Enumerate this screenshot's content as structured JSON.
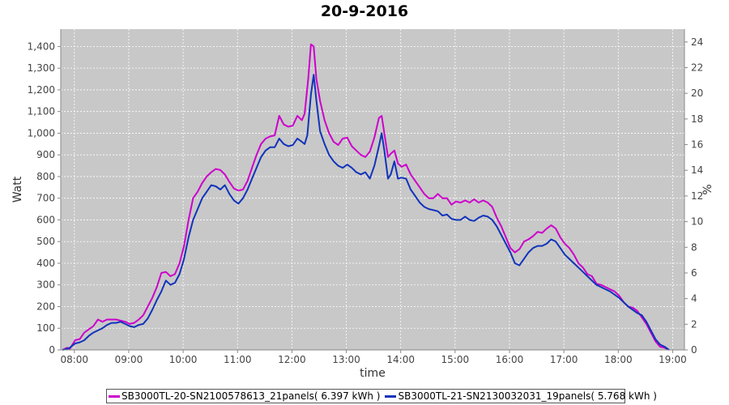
{
  "title": "20-9-2016",
  "chart_data": {
    "type": "line",
    "title": "20-9-2016",
    "xlabel": "time",
    "ylabel": "Watt",
    "y2label": "%",
    "xlim": [
      "07:45",
      "19:13"
    ],
    "ylim": [
      0,
      1480
    ],
    "y2lim": [
      0,
      25
    ],
    "x_ticks": [
      "08:00",
      "09:00",
      "10:00",
      "11:00",
      "12:00",
      "13:00",
      "14:00",
      "15:00",
      "16:00",
      "17:00",
      "18:00",
      "19:00"
    ],
    "y_ticks": [
      0,
      100,
      200,
      300,
      400,
      500,
      600,
      700,
      800,
      900,
      1000,
      1100,
      1200,
      1300,
      1400
    ],
    "y_tick_labels": [
      "0",
      "100",
      "200",
      "300",
      "400",
      "500",
      "600",
      "700",
      "800",
      "900",
      "1,000",
      "1,100",
      "1,200",
      "1,300",
      "1,400"
    ],
    "y2_ticks": [
      "0",
      "2",
      "4",
      "6",
      "8",
      "10",
      "12",
      "14",
      "16",
      "18",
      "20",
      "22",
      "24"
    ],
    "grid": true,
    "background": "#c8c8c8",
    "legend_position": "bottom",
    "series": [
      {
        "name": "SB3000TL-20-SN2100578613_21panels( 6.397 kWh )",
        "color": "#cc00cc",
        "points": [
          [
            "07:47",
            0
          ],
          [
            "07:52",
            10
          ],
          [
            "07:55",
            5
          ],
          [
            "07:58",
            25
          ],
          [
            "08:01",
            45
          ],
          [
            "08:06",
            50
          ],
          [
            "08:11",
            80
          ],
          [
            "08:16",
            95
          ],
          [
            "08:21",
            110
          ],
          [
            "08:26",
            140
          ],
          [
            "08:31",
            130
          ],
          [
            "08:36",
            140
          ],
          [
            "08:46",
            140
          ],
          [
            "08:56",
            130
          ],
          [
            "09:01",
            120
          ],
          [
            "09:06",
            125
          ],
          [
            "09:11",
            140
          ],
          [
            "09:16",
            160
          ],
          [
            "09:21",
            200
          ],
          [
            "09:26",
            240
          ],
          [
            "09:31",
            290
          ],
          [
            "09:36",
            355
          ],
          [
            "09:41",
            360
          ],
          [
            "09:46",
            340
          ],
          [
            "09:51",
            350
          ],
          [
            "09:56",
            400
          ],
          [
            "10:01",
            480
          ],
          [
            "10:06",
            600
          ],
          [
            "10:11",
            700
          ],
          [
            "10:16",
            730
          ],
          [
            "10:21",
            770
          ],
          [
            "10:26",
            800
          ],
          [
            "10:31",
            820
          ],
          [
            "10:36",
            835
          ],
          [
            "10:41",
            830
          ],
          [
            "10:46",
            810
          ],
          [
            "10:51",
            775
          ],
          [
            "10:56",
            745
          ],
          [
            "11:01",
            735
          ],
          [
            "11:06",
            740
          ],
          [
            "11:11",
            780
          ],
          [
            "11:16",
            840
          ],
          [
            "11:21",
            900
          ],
          [
            "11:26",
            950
          ],
          [
            "11:31",
            975
          ],
          [
            "11:36",
            985
          ],
          [
            "11:41",
            990
          ],
          [
            "11:46",
            1080
          ],
          [
            "11:51",
            1040
          ],
          [
            "11:56",
            1030
          ],
          [
            "12:01",
            1035
          ],
          [
            "12:06",
            1080
          ],
          [
            "12:11",
            1060
          ],
          [
            "12:14",
            1090
          ],
          [
            "12:18",
            1250
          ],
          [
            "12:21",
            1410
          ],
          [
            "12:24",
            1400
          ],
          [
            "12:27",
            1250
          ],
          [
            "12:31",
            1150
          ],
          [
            "12:36",
            1060
          ],
          [
            "12:41",
            1000
          ],
          [
            "12:46",
            960
          ],
          [
            "12:51",
            945
          ],
          [
            "12:56",
            975
          ],
          [
            "13:01",
            980
          ],
          [
            "13:06",
            940
          ],
          [
            "13:11",
            920
          ],
          [
            "13:16",
            900
          ],
          [
            "13:21",
            890
          ],
          [
            "13:26",
            915
          ],
          [
            "13:31",
            980
          ],
          [
            "13:36",
            1070
          ],
          [
            "13:39",
            1080
          ],
          [
            "13:43",
            970
          ],
          [
            "13:46",
            890
          ],
          [
            "13:49",
            905
          ],
          [
            "13:53",
            920
          ],
          [
            "13:57",
            860
          ],
          [
            "14:01",
            845
          ],
          [
            "14:06",
            855
          ],
          [
            "14:11",
            810
          ],
          [
            "14:16",
            780
          ],
          [
            "14:21",
            750
          ],
          [
            "14:26",
            720
          ],
          [
            "14:31",
            700
          ],
          [
            "14:36",
            700
          ],
          [
            "14:41",
            720
          ],
          [
            "14:46",
            700
          ],
          [
            "14:51",
            700
          ],
          [
            "14:56",
            670
          ],
          [
            "15:01",
            685
          ],
          [
            "15:06",
            680
          ],
          [
            "15:11",
            690
          ],
          [
            "15:16",
            680
          ],
          [
            "15:21",
            695
          ],
          [
            "15:26",
            680
          ],
          [
            "15:31",
            690
          ],
          [
            "15:36",
            680
          ],
          [
            "15:41",
            660
          ],
          [
            "15:46",
            610
          ],
          [
            "15:51",
            570
          ],
          [
            "15:56",
            520
          ],
          [
            "16:01",
            470
          ],
          [
            "16:06",
            450
          ],
          [
            "16:11",
            465
          ],
          [
            "16:16",
            500
          ],
          [
            "16:21",
            510
          ],
          [
            "16:26",
            525
          ],
          [
            "16:31",
            545
          ],
          [
            "16:36",
            540
          ],
          [
            "16:41",
            560
          ],
          [
            "16:46",
            575
          ],
          [
            "16:51",
            560
          ],
          [
            "16:56",
            520
          ],
          [
            "17:01",
            490
          ],
          [
            "17:06",
            470
          ],
          [
            "17:11",
            440
          ],
          [
            "17:16",
            400
          ],
          [
            "17:21",
            380
          ],
          [
            "17:26",
            350
          ],
          [
            "17:31",
            340
          ],
          [
            "17:36",
            305
          ],
          [
            "17:41",
            300
          ],
          [
            "17:46",
            290
          ],
          [
            "17:51",
            280
          ],
          [
            "17:56",
            270
          ],
          [
            "18:01",
            250
          ],
          [
            "18:06",
            220
          ],
          [
            "18:11",
            200
          ],
          [
            "18:16",
            195
          ],
          [
            "18:21",
            180
          ],
          [
            "18:26",
            150
          ],
          [
            "18:31",
            120
          ],
          [
            "18:36",
            80
          ],
          [
            "18:41",
            40
          ],
          [
            "18:46",
            15
          ],
          [
            "18:51",
            10
          ],
          [
            "18:56",
            0
          ]
        ]
      },
      {
        "name": "SB3000TL-21-SN2130032031_19panels( 5.768 kWh )",
        "color": "#1133bb",
        "points": [
          [
            "07:47",
            0
          ],
          [
            "07:52",
            5
          ],
          [
            "07:55",
            10
          ],
          [
            "07:58",
            20
          ],
          [
            "08:01",
            30
          ],
          [
            "08:06",
            35
          ],
          [
            "08:11",
            45
          ],
          [
            "08:16",
            65
          ],
          [
            "08:21",
            80
          ],
          [
            "08:26",
            90
          ],
          [
            "08:31",
            100
          ],
          [
            "08:36",
            115
          ],
          [
            "08:41",
            125
          ],
          [
            "08:46",
            125
          ],
          [
            "08:51",
            130
          ],
          [
            "08:56",
            120
          ],
          [
            "09:01",
            110
          ],
          [
            "09:06",
            105
          ],
          [
            "09:11",
            115
          ],
          [
            "09:16",
            120
          ],
          [
            "09:21",
            145
          ],
          [
            "09:26",
            185
          ],
          [
            "09:31",
            230
          ],
          [
            "09:36",
            270
          ],
          [
            "09:41",
            320
          ],
          [
            "09:46",
            300
          ],
          [
            "09:51",
            310
          ],
          [
            "09:56",
            350
          ],
          [
            "10:01",
            420
          ],
          [
            "10:06",
            520
          ],
          [
            "10:11",
            600
          ],
          [
            "10:16",
            650
          ],
          [
            "10:21",
            700
          ],
          [
            "10:26",
            730
          ],
          [
            "10:31",
            760
          ],
          [
            "10:36",
            755
          ],
          [
            "10:41",
            740
          ],
          [
            "10:46",
            760
          ],
          [
            "10:51",
            720
          ],
          [
            "10:56",
            690
          ],
          [
            "11:01",
            675
          ],
          [
            "11:06",
            700
          ],
          [
            "11:11",
            740
          ],
          [
            "11:16",
            790
          ],
          [
            "11:21",
            840
          ],
          [
            "11:26",
            890
          ],
          [
            "11:31",
            920
          ],
          [
            "11:36",
            935
          ],
          [
            "11:41",
            935
          ],
          [
            "11:46",
            975
          ],
          [
            "11:51",
            950
          ],
          [
            "11:56",
            940
          ],
          [
            "12:01",
            945
          ],
          [
            "12:06",
            975
          ],
          [
            "12:11",
            960
          ],
          [
            "12:14",
            950
          ],
          [
            "12:17",
            990
          ],
          [
            "12:21",
            1180
          ],
          [
            "12:24",
            1270
          ],
          [
            "12:27",
            1150
          ],
          [
            "12:31",
            1010
          ],
          [
            "12:36",
            950
          ],
          [
            "12:41",
            900
          ],
          [
            "12:46",
            870
          ],
          [
            "12:51",
            850
          ],
          [
            "12:56",
            840
          ],
          [
            "13:01",
            855
          ],
          [
            "13:06",
            840
          ],
          [
            "13:11",
            820
          ],
          [
            "13:16",
            810
          ],
          [
            "13:21",
            820
          ],
          [
            "13:26",
            790
          ],
          [
            "13:31",
            850
          ],
          [
            "13:36",
            940
          ],
          [
            "13:39",
            1000
          ],
          [
            "13:42",
            920
          ],
          [
            "13:46",
            790
          ],
          [
            "13:49",
            810
          ],
          [
            "13:53",
            870
          ],
          [
            "13:57",
            790
          ],
          [
            "14:01",
            795
          ],
          [
            "14:06",
            790
          ],
          [
            "14:11",
            740
          ],
          [
            "14:16",
            710
          ],
          [
            "14:21",
            680
          ],
          [
            "14:26",
            660
          ],
          [
            "14:31",
            650
          ],
          [
            "14:36",
            645
          ],
          [
            "14:41",
            640
          ],
          [
            "14:46",
            620
          ],
          [
            "14:51",
            625
          ],
          [
            "14:56",
            605
          ],
          [
            "15:01",
            600
          ],
          [
            "15:06",
            600
          ],
          [
            "15:11",
            615
          ],
          [
            "15:16",
            600
          ],
          [
            "15:21",
            595
          ],
          [
            "15:26",
            610
          ],
          [
            "15:31",
            620
          ],
          [
            "15:36",
            615
          ],
          [
            "15:41",
            600
          ],
          [
            "15:46",
            570
          ],
          [
            "15:51",
            530
          ],
          [
            "15:56",
            490
          ],
          [
            "16:01",
            450
          ],
          [
            "16:06",
            400
          ],
          [
            "16:11",
            390
          ],
          [
            "16:16",
            420
          ],
          [
            "16:21",
            450
          ],
          [
            "16:26",
            470
          ],
          [
            "16:31",
            480
          ],
          [
            "16:36",
            480
          ],
          [
            "16:41",
            490
          ],
          [
            "16:46",
            510
          ],
          [
            "16:51",
            500
          ],
          [
            "16:56",
            470
          ],
          [
            "17:01",
            440
          ],
          [
            "17:06",
            420
          ],
          [
            "17:11",
            400
          ],
          [
            "17:16",
            380
          ],
          [
            "17:21",
            360
          ],
          [
            "17:26",
            340
          ],
          [
            "17:31",
            320
          ],
          [
            "17:36",
            300
          ],
          [
            "17:41",
            290
          ],
          [
            "17:46",
            280
          ],
          [
            "17:51",
            270
          ],
          [
            "17:56",
            255
          ],
          [
            "18:01",
            240
          ],
          [
            "18:06",
            220
          ],
          [
            "18:11",
            200
          ],
          [
            "18:16",
            185
          ],
          [
            "18:21",
            170
          ],
          [
            "18:26",
            160
          ],
          [
            "18:31",
            130
          ],
          [
            "18:36",
            90
          ],
          [
            "18:41",
            50
          ],
          [
            "18:46",
            25
          ],
          [
            "18:51",
            15
          ],
          [
            "18:56",
            0
          ]
        ]
      }
    ]
  }
}
